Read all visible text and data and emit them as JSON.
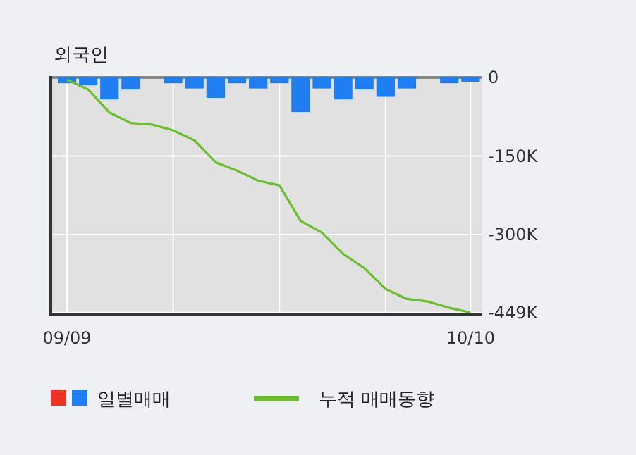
{
  "chart_data": {
    "type": "bar",
    "title": "외국인",
    "categories": [
      "09/09",
      null,
      null,
      null,
      null,
      null,
      null,
      null,
      null,
      null,
      null,
      null,
      null,
      null,
      null,
      null,
      null,
      null,
      null,
      "10/10"
    ],
    "series": [
      {
        "name": "일별매매",
        "color": "#1f7ef2",
        "values": [
          -11000,
          -15000,
          -42000,
          -23000,
          0,
          -11000,
          -21000,
          -39000,
          -11000,
          -21000,
          -11000,
          -66000,
          -21000,
          -42000,
          -23000,
          -37000,
          -21000,
          0,
          -11000,
          -8000
        ]
      },
      {
        "name": "누적 매매동향",
        "type": "line",
        "color": "#6abf2a",
        "values": [
          -4000,
          -23000,
          -67000,
          -87000,
          -90000,
          -101000,
          -120000,
          -162000,
          -178000,
          -197000,
          -206000,
          -274000,
          -296000,
          -337000,
          -364000,
          -404000,
          -423000,
          -428000,
          -440000,
          -449000
        ]
      }
    ],
    "ylim": [
      -452000,
      0
    ],
    "yticks": [
      0,
      {
        "value": -150000,
        "label": "-150K"
      },
      {
        "value": -300000,
        "label": "-300K"
      },
      {
        "value": -449000,
        "label": "-449K"
      }
    ],
    "grid": true,
    "legend": "bottom"
  }
}
